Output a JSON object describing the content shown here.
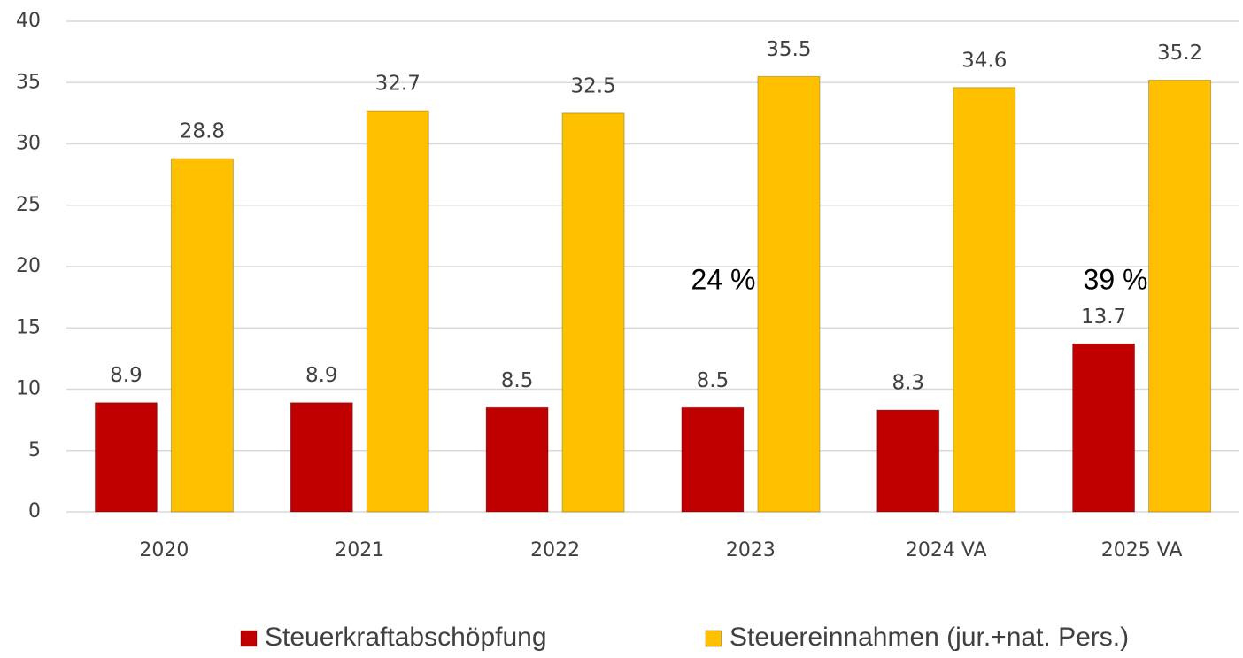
{
  "chart_data": {
    "type": "bar",
    "categories": [
      "2020",
      "2021",
      "2022",
      "2023",
      "2024 VA",
      "2025 VA"
    ],
    "series": [
      {
        "name": "Steuerkraftabschöpfung",
        "color": "#c00000",
        "values": [
          8.9,
          8.9,
          8.5,
          8.5,
          8.3,
          13.7
        ]
      },
      {
        "name": "Steuereinnahmen (jur.+nat. Pers.)",
        "color": "#ffc000",
        "values": [
          28.8,
          32.7,
          32.5,
          35.5,
          34.6,
          35.2
        ]
      }
    ],
    "annotations": [
      "24 %",
      "39 %"
    ],
    "ylim": [
      0,
      40
    ],
    "yticks": [
      0,
      5,
      10,
      15,
      20,
      25,
      30,
      35,
      40
    ],
    "grid": true,
    "legend": "bottom"
  }
}
